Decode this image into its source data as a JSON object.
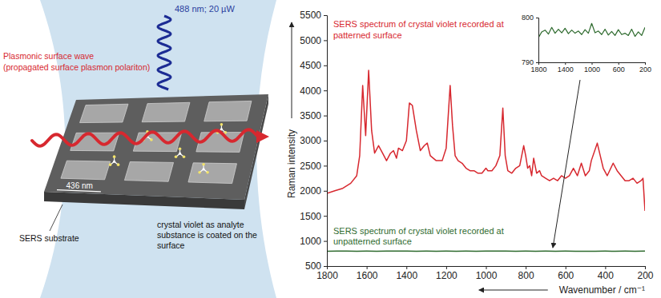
{
  "diagram": {
    "laser": "488 nm; 20 µW",
    "surface_wave": {
      "title": "Plasmonic surface wave",
      "subtitle": "(propagated surface plasmon polariton)"
    },
    "scale_bar": "436 nm",
    "substrate": "SERS substrate",
    "analyte": "crystal violet as analyte substance is coated on the surface"
  },
  "chart_data": [
    {
      "type": "line",
      "xlabel": "Wavenumber / cm⁻¹",
      "ylabel": "Raman intensity",
      "xlim": [
        1800,
        200
      ],
      "ylim": [
        500,
        5500
      ],
      "xticks": [
        1800,
        1600,
        1400,
        1200,
        1000,
        800,
        600,
        400,
        200
      ],
      "yticks": [
        500,
        1000,
        1500,
        2000,
        2500,
        3000,
        3500,
        4000,
        4500,
        5000,
        5500
      ],
      "series": [
        {
          "name": "SERS spectrum of crystal violet recorded at patterned surface",
          "color": "#d7282f",
          "x": [
            1800,
            1760,
            1720,
            1680,
            1650,
            1635,
            1620,
            1605,
            1590,
            1575,
            1560,
            1540,
            1520,
            1500,
            1480,
            1465,
            1450,
            1440,
            1420,
            1400,
            1385,
            1370,
            1350,
            1330,
            1310,
            1295,
            1280,
            1250,
            1220,
            1200,
            1180,
            1168,
            1155,
            1140,
            1120,
            1100,
            1080,
            1060,
            1040,
            1020,
            1000,
            990,
            970,
            950,
            930,
            915,
            903,
            890,
            870,
            850,
            830,
            810,
            800,
            790,
            780,
            770,
            760,
            745,
            730,
            720,
            700,
            680,
            660,
            640,
            620,
            600,
            580,
            560,
            540,
            520,
            500,
            480,
            470,
            440,
            425,
            410,
            390,
            360,
            340,
            320,
            300,
            280,
            260,
            240,
            220,
            210,
            200
          ],
          "values": [
            1950,
            2000,
            2050,
            2150,
            2300,
            2700,
            4100,
            3100,
            4400,
            3200,
            2750,
            2900,
            2750,
            2600,
            2750,
            2800,
            2650,
            2850,
            2800,
            3000,
            3750,
            3700,
            3200,
            2800,
            2900,
            2950,
            2700,
            2600,
            2600,
            2850,
            4100,
            3300,
            2700,
            2600,
            2550,
            2450,
            2400,
            2400,
            2350,
            2350,
            2450,
            2400,
            2400,
            2500,
            2700,
            3650,
            2700,
            2400,
            2350,
            2450,
            2500,
            2900,
            2700,
            2450,
            2500,
            2300,
            2650,
            2350,
            2400,
            2300,
            2250,
            2200,
            2250,
            2200,
            2300,
            2250,
            2300,
            2450,
            2300,
            2550,
            2300,
            2400,
            2600,
            2950,
            2700,
            2450,
            2300,
            2550,
            2400,
            2300,
            2200,
            2200,
            2250,
            2150,
            2200,
            2250,
            1600
          ]
        },
        {
          "name": "SERS spectrum of crystal violet recorded at unpatterned surface",
          "color": "#2f6b2f",
          "x": [
            1800,
            1750,
            1700,
            1650,
            1600,
            1550,
            1500,
            1450,
            1400,
            1350,
            1300,
            1250,
            1200,
            1150,
            1100,
            1050,
            1000,
            950,
            900,
            850,
            800,
            750,
            700,
            650,
            600,
            550,
            500,
            450,
            400,
            350,
            300,
            250,
            200
          ],
          "values": [
            795.5,
            796.8,
            797.2,
            796.3,
            797.8,
            796.5,
            797.4,
            796.6,
            797.6,
            796.4,
            797.2,
            796.5,
            797.0,
            796.2,
            797.3,
            796.5,
            798.7,
            796.6,
            797.0,
            796.2,
            797.4,
            796.1,
            796.9,
            796.0,
            797.3,
            796.2,
            796.5,
            796.0,
            797.4,
            795.8,
            796.8,
            796.0,
            797.8
          ]
        }
      ]
    },
    {
      "type": "line",
      "xlim": [
        1800,
        200
      ],
      "ylim": [
        790,
        800
      ],
      "xticks": [
        1800,
        1400,
        1000,
        600,
        200
      ],
      "yticks": [
        790,
        800
      ],
      "series": [
        {
          "color": "#2f6b2f",
          "x": [
            1800,
            1750,
            1700,
            1650,
            1600,
            1550,
            1500,
            1450,
            1400,
            1350,
            1300,
            1250,
            1200,
            1150,
            1100,
            1050,
            1000,
            950,
            900,
            850,
            800,
            750,
            700,
            650,
            600,
            550,
            500,
            450,
            400,
            350,
            300,
            250,
            200
          ],
          "values": [
            795.5,
            796.8,
            797.2,
            796.3,
            797.8,
            796.5,
            797.4,
            796.6,
            797.6,
            796.4,
            797.2,
            796.5,
            797.0,
            796.2,
            797.3,
            796.5,
            798.7,
            796.6,
            797.0,
            796.2,
            797.4,
            796.1,
            796.9,
            796.0,
            797.3,
            796.2,
            796.5,
            796.0,
            797.4,
            795.8,
            796.8,
            796.0,
            797.8
          ]
        }
      ]
    }
  ]
}
